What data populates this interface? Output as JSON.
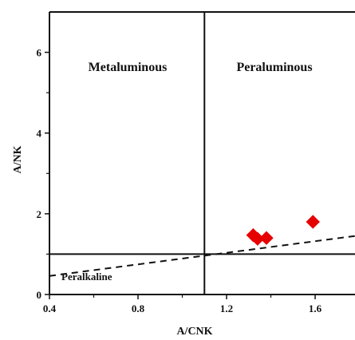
{
  "chart_data": {
    "type": "scatter",
    "xlabel": "A/CNK",
    "ylabel": "A/NK",
    "xlim": [
      0.4,
      1.78
    ],
    "ylim": [
      0,
      7
    ],
    "x_ticks": [
      0.4,
      0.8,
      1.2,
      1.6
    ],
    "x_tick_labels": [
      "0.4",
      "0.8",
      "1.2",
      "1.6"
    ],
    "y_ticks": [
      0,
      2,
      4,
      6
    ],
    "y_tick_labels": [
      "0",
      "2",
      "4",
      "6"
    ],
    "grid": false,
    "regions": {
      "metaluminous": "Metaluminous",
      "peraluminous": "Peraluminous",
      "peralkaline": "Peralkaline"
    },
    "boundaries": {
      "vertical_x": 1.1,
      "horizontal_y": 1.0,
      "dashed_line": [
        [
          0.4,
          0.46
        ],
        [
          1.78,
          1.45
        ]
      ]
    },
    "marker": {
      "shape": "diamond",
      "color": "#e60000"
    },
    "points": [
      {
        "x": 1.32,
        "y": 1.47
      },
      {
        "x": 1.34,
        "y": 1.38
      },
      {
        "x": 1.38,
        "y": 1.4
      },
      {
        "x": 1.59,
        "y": 1.8
      }
    ]
  }
}
